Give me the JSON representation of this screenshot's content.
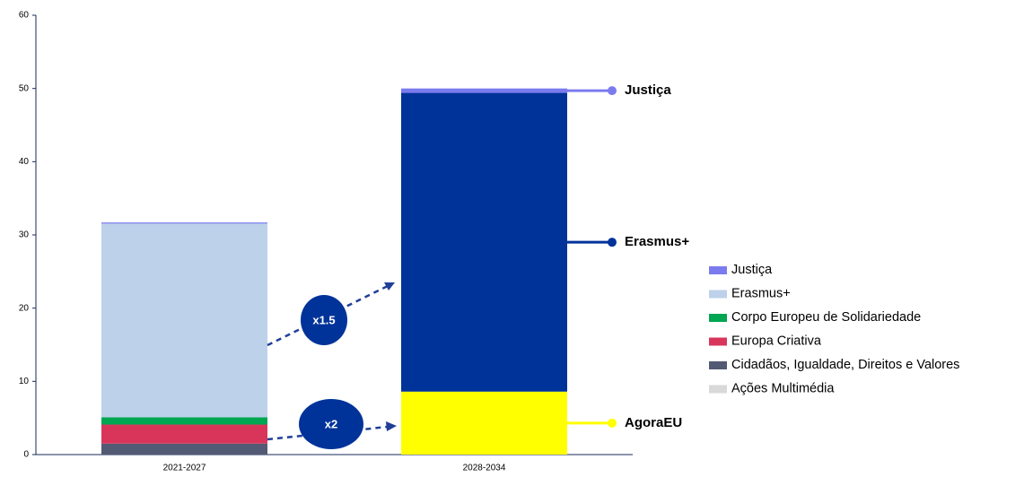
{
  "chart_data": {
    "type": "stacked_bar",
    "categories": [
      "2021-2027",
      "2028-2034"
    ],
    "series": [
      {
        "name": "AgoraEU",
        "color": "#ffff00",
        "values": [
          null,
          8.6
        ],
        "legend": false
      },
      {
        "name": "Ações Multimédia",
        "color": "#d9d9d9",
        "values": [
          0,
          null
        ]
      },
      {
        "name": "Cidadãos, Igualdade, Direitos e Valores",
        "color": "#525a74",
        "values": [
          1.5,
          null
        ]
      },
      {
        "name": "Europa Criativa",
        "color": "#d9355b",
        "values": [
          2.6,
          null
        ]
      },
      {
        "name": "Corpo Europeu de Solidariedade",
        "color": "#00a651",
        "values": [
          1.0,
          null
        ]
      },
      {
        "name": "Erasmus+",
        "color": "#bdd1ea",
        "colors": [
          "#bdd1ea",
          "#003399"
        ],
        "values": [
          26.5,
          40.8
        ]
      },
      {
        "name": "Justiça",
        "color": "#7b7bef",
        "values": [
          0.1,
          0.6
        ]
      }
    ],
    "annotations": [
      "x1.5",
      "x2"
    ],
    "ylim": [
      0,
      60
    ],
    "yticks": [
      0,
      10,
      20,
      30,
      40,
      50,
      60
    ],
    "grid": false
  }
}
